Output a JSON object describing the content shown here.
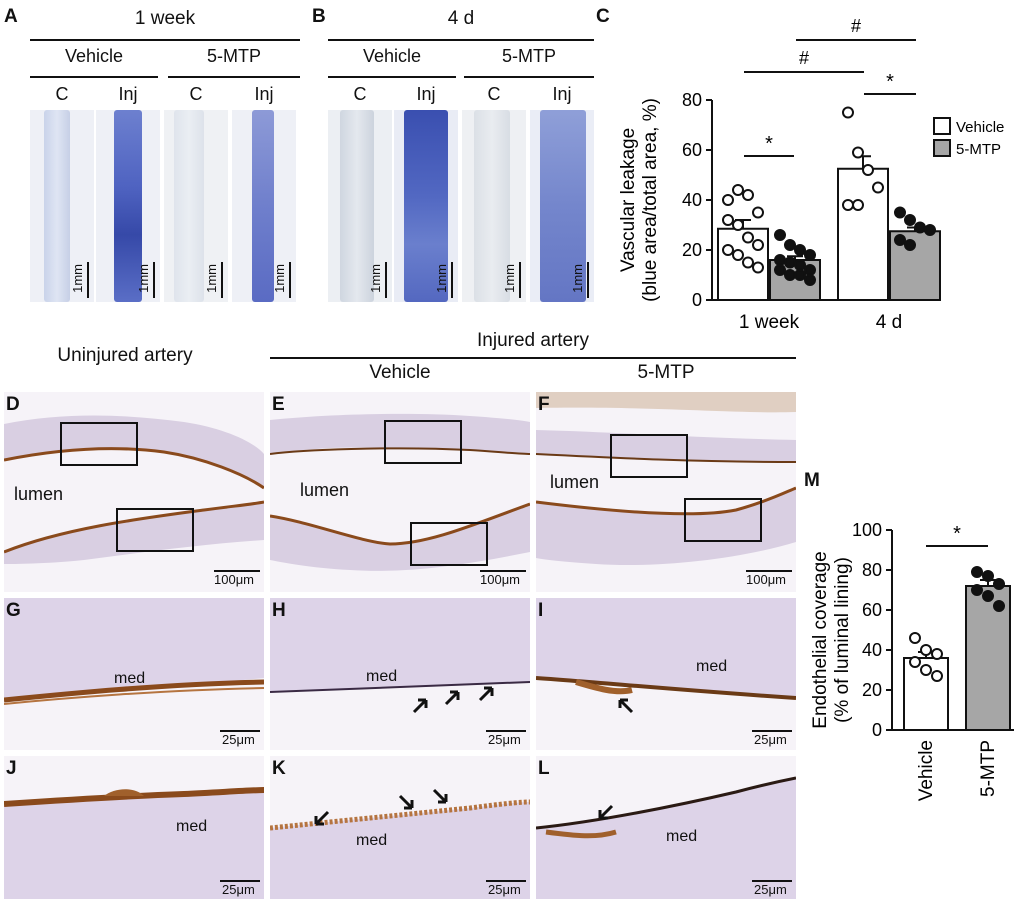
{
  "panelA": {
    "letter": "A",
    "title": "1 week",
    "groups": [
      "Vehicle",
      "5-MTP"
    ],
    "lanes": [
      "C",
      "Inj",
      "C",
      "Inj"
    ],
    "scale": "1mm"
  },
  "panelB": {
    "letter": "B",
    "title": "4 d",
    "groups": [
      "Vehicle",
      "5-MTP"
    ],
    "lanes": [
      "C",
      "Inj",
      "C",
      "Inj"
    ],
    "scale": "1mm"
  },
  "panelC": {
    "letter": "C",
    "sig1": "*",
    "sig2": "*",
    "sig3": "#",
    "sig4": "#"
  },
  "panelM": {
    "letter": "M",
    "sig": "*"
  },
  "histology": {
    "uninjured": "Uninjured artery",
    "injured": "Injured artery",
    "vehicle": "Vehicle",
    "mtp": "5-MTP",
    "lumen": "lumen",
    "med": "med",
    "scale100": "100μm",
    "scale25": "25μm",
    "letters": [
      "D",
      "E",
      "F",
      "G",
      "H",
      "I",
      "J",
      "K",
      "L"
    ]
  },
  "chart_data": [
    {
      "type": "bar",
      "panel": "C",
      "categories": [
        "1 week",
        "4 d"
      ],
      "ylabel": "Vascular leakage (blue area/total area, %)",
      "ylim": [
        0,
        80
      ],
      "yticks": [
        0,
        20,
        40,
        60,
        80
      ],
      "legend": "top-right",
      "series": [
        {
          "name": "Vehicle",
          "color": "#ffffff",
          "values": [
            28.5,
            52.5
          ],
          "sem": [
            3.5,
            5.0
          ],
          "points": [
            [
              40,
              44,
              42,
              35,
              32,
              30,
              25,
              22,
              20,
              18,
              15,
              13
            ],
            [
              75,
              59,
              52,
              45,
              38,
              38
            ]
          ]
        },
        {
          "name": "5-MTP",
          "color": "#a6a6a6",
          "values": [
            16,
            27.5
          ],
          "sem": [
            1.5,
            1.5
          ],
          "points": [
            [
              26,
              22,
              20,
              18,
              16,
              15,
              14,
              12,
              12,
              10,
              10,
              8
            ],
            [
              35,
              32,
              29,
              28,
              24,
              22
            ]
          ]
        }
      ]
    },
    {
      "type": "bar",
      "panel": "M",
      "categories": [
        "Vehicle",
        "5-MTP"
      ],
      "ylabel": "Endothelial coverage (% of luminal lining)",
      "ylim": [
        0,
        100
      ],
      "yticks": [
        0,
        20,
        40,
        60,
        80,
        100
      ],
      "series": [
        {
          "name": "",
          "colors": [
            "#ffffff",
            "#a6a6a6"
          ],
          "values": [
            36,
            72
          ],
          "sem": [
            3,
            3
          ],
          "points": [
            [
              46,
              40,
              38,
              34,
              30,
              27
            ],
            [
              79,
              77,
              73,
              70,
              67,
              62
            ]
          ]
        }
      ]
    }
  ]
}
